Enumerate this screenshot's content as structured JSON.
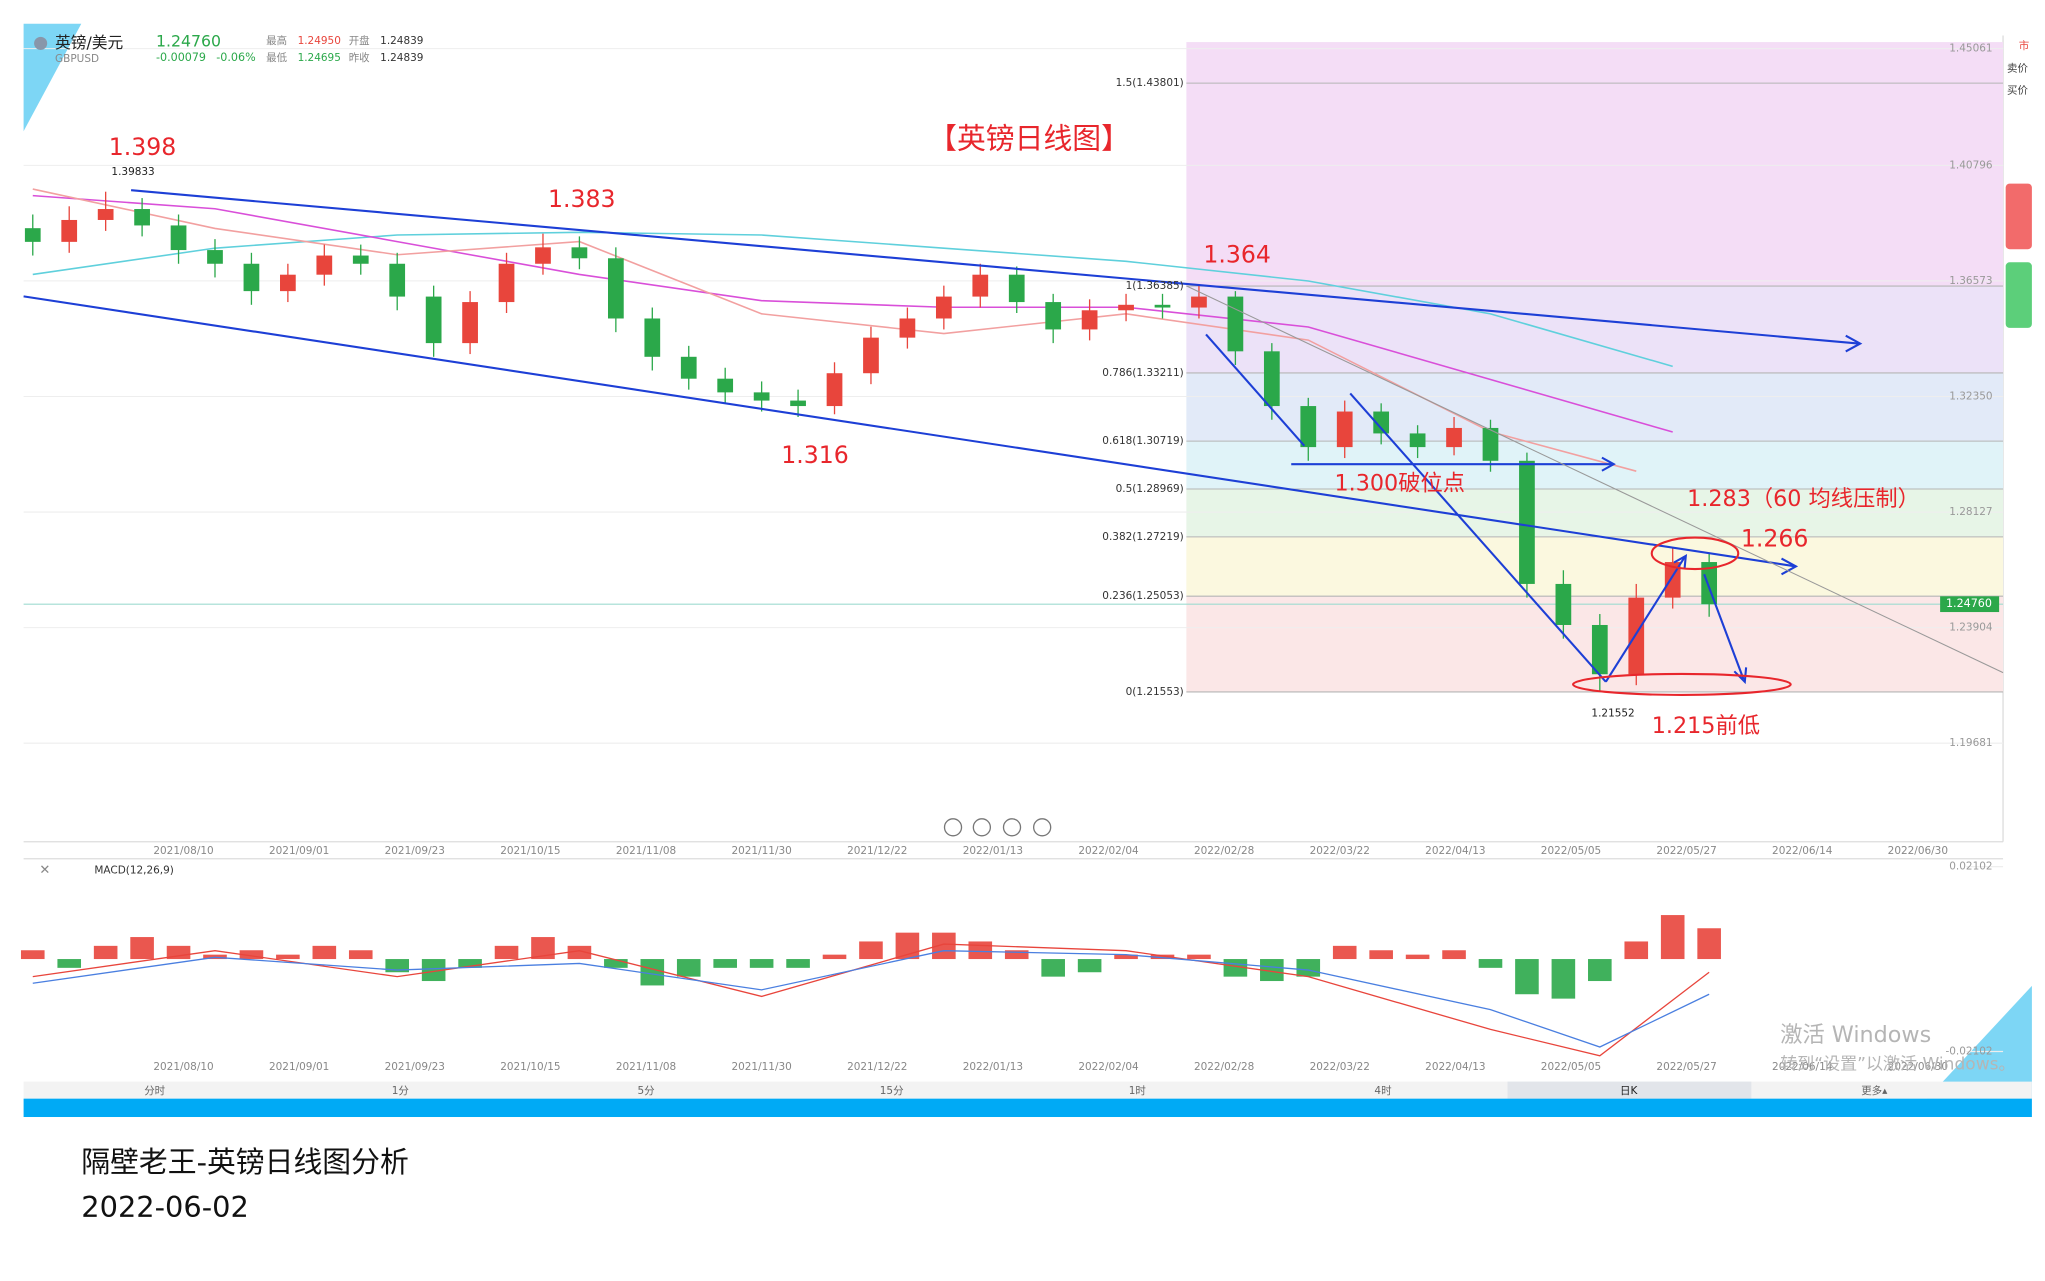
{
  "header": {
    "name": "英镑/美元",
    "code": "GBPUSD",
    "price": "1.24760",
    "change": "-0.00079",
    "change_pct": "-0.06%",
    "stats": [
      {
        "label": "最高",
        "value": "1.24950"
      },
      {
        "label": "开盘",
        "value": "1.24839"
      },
      {
        "label": "最低",
        "value": "1.24695"
      },
      {
        "label": "昨收",
        "value": "1.24839"
      }
    ]
  },
  "annotations": {
    "title": "【英镑日线图】",
    "labels": [
      "1.398",
      "1.39833",
      "1.383",
      "1.364",
      "1.316",
      "1.300破位点",
      "1.283（60 均线压制）",
      "1.266",
      "1.215前低",
      "1.21552"
    ]
  },
  "chart_data": {
    "type": "candlestick",
    "x_labels": [
      "2021/08/10",
      "2021/09/01",
      "2021/09/23",
      "2021/10/15",
      "2021/11/08",
      "2021/11/30",
      "2021/12/22",
      "2022/01/13",
      "2022/02/04",
      "2022/02/28",
      "2022/03/22",
      "2022/04/13",
      "2022/05/05",
      "2022/05/27",
      "2022/06/14",
      "2022/06/30"
    ],
    "open": [
      1.385,
      1.38,
      1.388,
      1.392,
      1.386,
      1.377,
      1.372,
      1.362,
      1.368,
      1.375,
      1.372,
      1.36,
      1.343,
      1.358,
      1.372,
      1.378,
      1.374,
      1.352,
      1.338,
      1.33,
      1.325,
      1.322,
      1.32,
      1.332,
      1.345,
      1.352,
      1.36,
      1.368,
      1.358,
      1.348,
      1.355,
      1.357,
      1.356,
      1.36,
      1.34,
      1.32,
      1.305,
      1.318,
      1.31,
      1.305,
      1.312,
      1.3,
      1.255,
      1.24,
      1.222,
      1.25,
      1.263
    ],
    "high": [
      1.39,
      1.393,
      1.39833,
      1.396,
      1.39,
      1.381,
      1.376,
      1.372,
      1.379,
      1.379,
      1.376,
      1.364,
      1.362,
      1.376,
      1.383,
      1.382,
      1.378,
      1.356,
      1.342,
      1.334,
      1.329,
      1.326,
      1.336,
      1.349,
      1.356,
      1.364,
      1.372,
      1.371,
      1.361,
      1.359,
      1.361,
      1.361,
      1.36385,
      1.362,
      1.343,
      1.323,
      1.322,
      1.321,
      1.313,
      1.316,
      1.315,
      1.303,
      1.26,
      1.244,
      1.255,
      1.268,
      1.266
    ],
    "low": [
      1.375,
      1.376,
      1.384,
      1.382,
      1.372,
      1.367,
      1.357,
      1.358,
      1.364,
      1.368,
      1.355,
      1.338,
      1.339,
      1.354,
      1.368,
      1.37,
      1.347,
      1.333,
      1.326,
      1.321,
      1.318,
      1.316,
      1.317,
      1.328,
      1.341,
      1.348,
      1.356,
      1.354,
      1.343,
      1.344,
      1.351,
      1.352,
      1.352,
      1.335,
      1.315,
      1.3,
      1.301,
      1.306,
      1.301,
      1.302,
      1.296,
      1.25,
      1.235,
      1.21552,
      1.218,
      1.246,
      1.243
    ],
    "close": [
      1.38,
      1.388,
      1.392,
      1.386,
      1.377,
      1.372,
      1.362,
      1.368,
      1.375,
      1.372,
      1.36,
      1.343,
      1.358,
      1.372,
      1.378,
      1.374,
      1.352,
      1.338,
      1.33,
      1.325,
      1.322,
      1.32,
      1.332,
      1.345,
      1.352,
      1.36,
      1.368,
      1.358,
      1.348,
      1.355,
      1.357,
      1.356,
      1.36,
      1.34,
      1.32,
      1.305,
      1.318,
      1.31,
      1.305,
      1.312,
      1.3,
      1.255,
      1.24,
      1.222,
      1.25,
      1.263,
      1.2476
    ],
    "up_color": "#e8453c",
    "down_color": "#2ba84a",
    "ylim": [
      1.1608,
      1.4554
    ],
    "yticks": [
      1.45061,
      1.40796,
      1.36573,
      {
        "value": 1.3235,
        "label": "1.32350"
      },
      1.28127,
      1.23904,
      1.19681
    ],
    "current": {
      "value": 1.2476,
      "label": "1.24760"
    },
    "fib": [
      {
        "label": "1.5(1.43801)",
        "value": 1.43801
      },
      {
        "label": "1(1.36385)",
        "value": 1.36385
      },
      {
        "label": "0.786(1.33211)",
        "value": 1.33211
      },
      {
        "label": "0.618(1.30719)",
        "value": 1.30719
      },
      {
        "label": "0.5(1.28969)",
        "value": 1.28969
      },
      {
        "label": "0.382(1.27219)",
        "value": 1.27219
      },
      {
        "label": "0.236(1.25053)",
        "value": 1.25053
      },
      {
        "label": "0(1.21553)",
        "value": 1.21553
      }
    ],
    "fib_colors": [
      "#f4ddf6",
      "#ece2f8",
      "#e2eaf8",
      "#e0f3f8",
      "#e7f5e7",
      "#fbf8df",
      "#fbe7e7"
    ],
    "ma": [
      {
        "color": "#5fd0dc",
        "x": [
          0,
          5,
          10,
          15,
          20,
          25,
          30,
          35,
          40,
          45
        ],
        "values": [
          1.3681,
          1.3777,
          1.3825,
          1.3835,
          1.3825,
          1.3777,
          1.3729,
          1.3657,
          1.3537,
          1.3345
        ]
      },
      {
        "color": "#d94fd9",
        "x": [
          0,
          5,
          10,
          15,
          20,
          25,
          30,
          35,
          40,
          45
        ],
        "values": [
          1.3969,
          1.3921,
          1.3801,
          1.3681,
          1.3585,
          1.3561,
          1.3561,
          1.3489,
          1.3297,
          1.3105
        ]
      },
      {
        "color": "#f2a0a0",
        "x": [
          0,
          5,
          10,
          15,
          20,
          25,
          30,
          35,
          40,
          44
        ],
        "values": [
          1.3993,
          1.3849,
          1.3753,
          1.3801,
          1.3537,
          1.3465,
          1.3537,
          1.3441,
          1.3106,
          1.2962
        ]
      }
    ]
  },
  "macd": {
    "type": "bar",
    "title": "MACD(12,26,9)",
    "ylim": [
      -0.0228,
      0.0228
    ],
    "yticks": [
      0.02102,
      -0.02102
    ],
    "values": [
      0.002,
      -0.002,
      0.003,
      0.005,
      0.003,
      0.001,
      0.002,
      0.001,
      0.003,
      0.002,
      -0.003,
      -0.005,
      -0.002,
      0.003,
      0.005,
      0.003,
      -0.002,
      -0.006,
      -0.004,
      -0.002,
      -0.002,
      -0.002,
      0.001,
      0.004,
      0.006,
      0.006,
      0.004,
      0.002,
      -0.004,
      -0.003,
      0.001,
      0.001,
      0.001,
      -0.004,
      -0.005,
      -0.004,
      0.003,
      0.002,
      0.001,
      0.002,
      -0.002,
      -0.008,
      -0.009,
      -0.005,
      0.004,
      0.01,
      0.007
    ],
    "up_color": "#e8453c",
    "down_color": "#2ba84a",
    "lines": [
      {
        "color": "#e8453c",
        "x": [
          0,
          5,
          10,
          15,
          20,
          25,
          30,
          35,
          40,
          43,
          46
        ],
        "values": [
          -0.004,
          0.0019,
          -0.004,
          0.0019,
          -0.0085,
          0.0034,
          0.0019,
          -0.004,
          -0.016,
          -0.022,
          -0.003
        ]
      },
      {
        "color": "#4a7fe0",
        "x": [
          0,
          5,
          10,
          15,
          20,
          25,
          30,
          35,
          40,
          43,
          46
        ],
        "values": [
          -0.0055,
          0.0004,
          -0.0025,
          -0.001,
          -0.007,
          0.0019,
          0.001,
          -0.0025,
          -0.0115,
          -0.02,
          -0.008
        ]
      }
    ]
  },
  "toolbar": {
    "periods": [
      "分时",
      "1分",
      "5分",
      "15分",
      "1时",
      "4时",
      "日K",
      "更多▴"
    ],
    "active": 6
  },
  "side": [
    "市",
    "卖价",
    "买价"
  ],
  "watermark": [
    "激活 Windows",
    "转到“设置”以激活 Windows。"
  ],
  "caption": [
    "隔壁老王-英镑日线图分析",
    "2022-06-02"
  ]
}
